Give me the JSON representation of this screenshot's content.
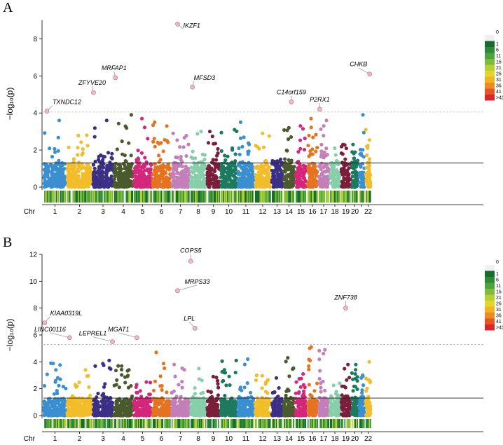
{
  "chart_data": [
    {
      "type": "scatter",
      "panel": "A",
      "ylabel": "−log₁₀(p)",
      "xlabel": "Chr",
      "ylim": [
        0,
        9
      ],
      "yticks": [
        0,
        2,
        4,
        6,
        8
      ],
      "suggestive_threshold": 1.3,
      "significance_threshold": 4.05,
      "chromosomes": [
        "1",
        "2",
        "3",
        "4",
        "5",
        "6",
        "7",
        "8",
        "9",
        "10",
        "11",
        "12",
        "13",
        "14",
        "15",
        "16",
        "17",
        "18",
        "19",
        "20",
        "21",
        "22"
      ],
      "chromosome_labels": [
        "1",
        "2",
        "3",
        "4",
        "5",
        "6",
        "7",
        "8",
        "9",
        "10",
        "11",
        "12",
        "13",
        "14",
        "15",
        "16",
        "17",
        "18",
        "19",
        "20",
        "",
        "22"
      ],
      "max_background": [
        3.6,
        2.8,
        3.6,
        3.9,
        3.7,
        3.5,
        2.9,
        3.0,
        3.0,
        3.1,
        3.5,
        2.9,
        1.5,
        3.2,
        3.3,
        3.7,
        3.6,
        2.1,
        2.3,
        2.3,
        3.9,
        3.1
      ],
      "highlighted_genes": [
        {
          "gene": "TXNDC12",
          "chromosome": "1",
          "value": 4.1
        },
        {
          "gene": "ZFYVE20",
          "chromosome": "3",
          "value": 5.1
        },
        {
          "gene": "MRFAP1",
          "chromosome": "4",
          "value": 5.9
        },
        {
          "gene": "IKZF1",
          "chromosome": "7",
          "value": 8.8
        },
        {
          "gene": "MFSD3",
          "chromosome": "8",
          "value": 5.4
        },
        {
          "gene": "C14orf159",
          "chromosome": "14",
          "value": 4.6
        },
        {
          "gene": "P2RX1",
          "chromosome": "17",
          "value": 4.2
        },
        {
          "gene": "CHKB",
          "chromosome": "22",
          "value": 6.1
        }
      ]
    },
    {
      "type": "scatter",
      "panel": "B",
      "ylabel": "−log₁₀(p)",
      "xlabel": "Chr",
      "ylim": [
        0,
        12
      ],
      "yticks": [
        0,
        2,
        4,
        6,
        8,
        10,
        12
      ],
      "suggestive_threshold": 1.3,
      "significance_threshold": 5.3,
      "chromosomes": [
        "1",
        "2",
        "3",
        "4",
        "5",
        "6",
        "7",
        "8",
        "9",
        "10",
        "11",
        "12",
        "13",
        "14",
        "15",
        "16",
        "17",
        "18",
        "19",
        "20",
        "21",
        "22"
      ],
      "chromosome_labels": [
        "1",
        "2",
        "3",
        "4",
        "5",
        "6",
        "7",
        "8",
        "9",
        "10",
        "11",
        "12",
        "13",
        "14",
        "15",
        "16",
        "17",
        "18",
        "19",
        "20",
        "",
        "22"
      ],
      "max_background": [
        3.9,
        3.4,
        4.1,
        3.7,
        2.5,
        4.7,
        3.8,
        3.5,
        2.9,
        4.1,
        4.2,
        3.0,
        2.8,
        4.3,
        3.1,
        5.1,
        4.9,
        2.4,
        3.8,
        3.8,
        3.0,
        4.0
      ],
      "highlighted_genes": [
        {
          "gene": "KIAA0319L",
          "chromosome": "1",
          "value": 6.9
        },
        {
          "gene": "LINC00116",
          "chromosome": "2",
          "value": 5.8
        },
        {
          "gene": "LEPREL1",
          "chromosome": "3",
          "value": 5.5
        },
        {
          "gene": "MGAT1",
          "chromosome": "5",
          "value": 5.8
        },
        {
          "gene": "LPL",
          "chromosome": "8",
          "value": 6.5
        },
        {
          "gene": "MRPS33",
          "chromosome": "7",
          "value": 9.3
        },
        {
          "gene": "COPS5",
          "chromosome": "8",
          "value": 11.5
        },
        {
          "gene": "ZNF738",
          "chromosome": "19",
          "value": 8.0
        }
      ]
    }
  ],
  "legend": {
    "labels": [
      "0",
      "1",
      "6",
      "11",
      "16",
      "21",
      "26",
      "31",
      "36",
      "41",
      ">41"
    ],
    "colors": [
      "#f0f0f0",
      "#1a6b2e",
      "#2d8a3a",
      "#4ea33c",
      "#7cbb3c",
      "#b6cf34",
      "#e4d52a",
      "#f0b425",
      "#ee8a24",
      "#e6552a",
      "#d8262a"
    ]
  },
  "colors": {
    "chromosomes": [
      "#3a8fd0",
      "#f2bd2b",
      "#3c2f86",
      "#4a5a2c",
      "#d4267a",
      "#e5731f",
      "#c57fb8",
      "#86cfaa",
      "#7a1f3b",
      "#1d7a5e",
      "#3a8fd0",
      "#f2bd2b",
      "#3c2f86",
      "#4a5a2c",
      "#d4267a",
      "#e5731f",
      "#c57fb8",
      "#86cfaa",
      "#7a1f3b",
      "#1d7a5e",
      "#3a8fd0",
      "#f2bd2b"
    ],
    "highlight_fill": "#f2b8c6",
    "highlight_stroke": "#b4667a",
    "threshold_line": "#222222",
    "significance_line": "#bdbdbd"
  }
}
